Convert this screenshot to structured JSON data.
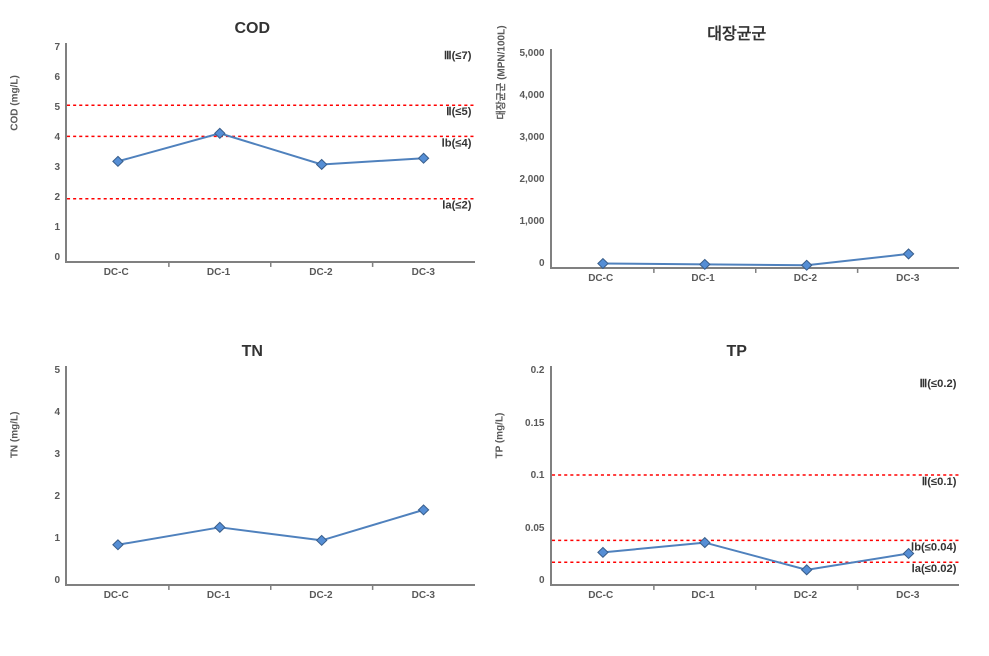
{
  "charts": {
    "cod": {
      "title": "COD",
      "type": "line",
      "ylabel": "COD (mg/L)",
      "categories": [
        "DC-C",
        "DC-1",
        "DC-2",
        "DC-3"
      ],
      "values": [
        3.2,
        4.1,
        3.1,
        3.3
      ],
      "ylim": [
        0,
        7
      ],
      "ytick_step": 1,
      "yticks": [
        "0",
        "1",
        "2",
        "3",
        "4",
        "5",
        "6",
        "7"
      ],
      "line_color": "#4f81bd",
      "marker_color": "#558ed5",
      "marker_border": "#385d8a",
      "ref_lines": [
        {
          "value": 2,
          "label": "Ⅰa(≤2)",
          "color": "#ff0000"
        },
        {
          "value": 4,
          "label": "Ⅰb(≤4)",
          "color": "#ff0000"
        },
        {
          "value": 5,
          "label": "Ⅱ(≤5)",
          "color": "#ff0000"
        }
      ],
      "top_annotation": {
        "value": 6.8,
        "label": "Ⅲ(≤7)"
      }
    },
    "coliform": {
      "title": "대장균군",
      "type": "line",
      "ylabel": "대장균군 (MPN/100L)",
      "categories": [
        "DC-C",
        "DC-1",
        "DC-2",
        "DC-3"
      ],
      "values": [
        80,
        60,
        40,
        300
      ],
      "ylim": [
        0,
        5000
      ],
      "ytick_step": 1000,
      "yticks": [
        "0",
        "1,000",
        "2,000",
        "3,000",
        "4,000",
        "5,000"
      ],
      "line_color": "#4f81bd",
      "marker_color": "#558ed5",
      "marker_border": "#385d8a",
      "ref_lines": [],
      "top_annotation": null
    },
    "tn": {
      "title": "TN",
      "type": "line",
      "ylabel": "TN (mg/L)",
      "categories": [
        "DC-C",
        "DC-1",
        "DC-2",
        "DC-3"
      ],
      "values": [
        0.9,
        1.3,
        1.0,
        1.7
      ],
      "ylim": [
        0,
        5
      ],
      "ytick_step": 1,
      "yticks": [
        "0",
        "1",
        "2",
        "3",
        "4",
        "5"
      ],
      "line_color": "#4f81bd",
      "marker_color": "#558ed5",
      "marker_border": "#385d8a",
      "ref_lines": [],
      "top_annotation": null
    },
    "tp": {
      "title": "TP",
      "type": "line",
      "ylabel": "TP (mg/L)",
      "categories": [
        "DC-C",
        "DC-1",
        "DC-2",
        "DC-3"
      ],
      "values": [
        0.029,
        0.038,
        0.013,
        0.028
      ],
      "ylim": [
        0,
        0.2
      ],
      "ytick_step": 0.05,
      "yticks": [
        "0",
        "0.05",
        "0.1",
        "0.15",
        "0.2"
      ],
      "line_color": "#4f81bd",
      "marker_color": "#558ed5",
      "marker_border": "#385d8a",
      "ref_lines": [
        {
          "value": 0.02,
          "label": "Ⅰa(≤0.02)",
          "color": "#ff0000"
        },
        {
          "value": 0.04,
          "label": "Ⅰb(≤0.04)",
          "color": "#ff0000"
        },
        {
          "value": 0.1,
          "label": "Ⅱ(≤0.1)",
          "color": "#ff0000"
        }
      ],
      "top_annotation": {
        "value": 0.19,
        "label": "Ⅲ(≤0.2)"
      }
    }
  }
}
